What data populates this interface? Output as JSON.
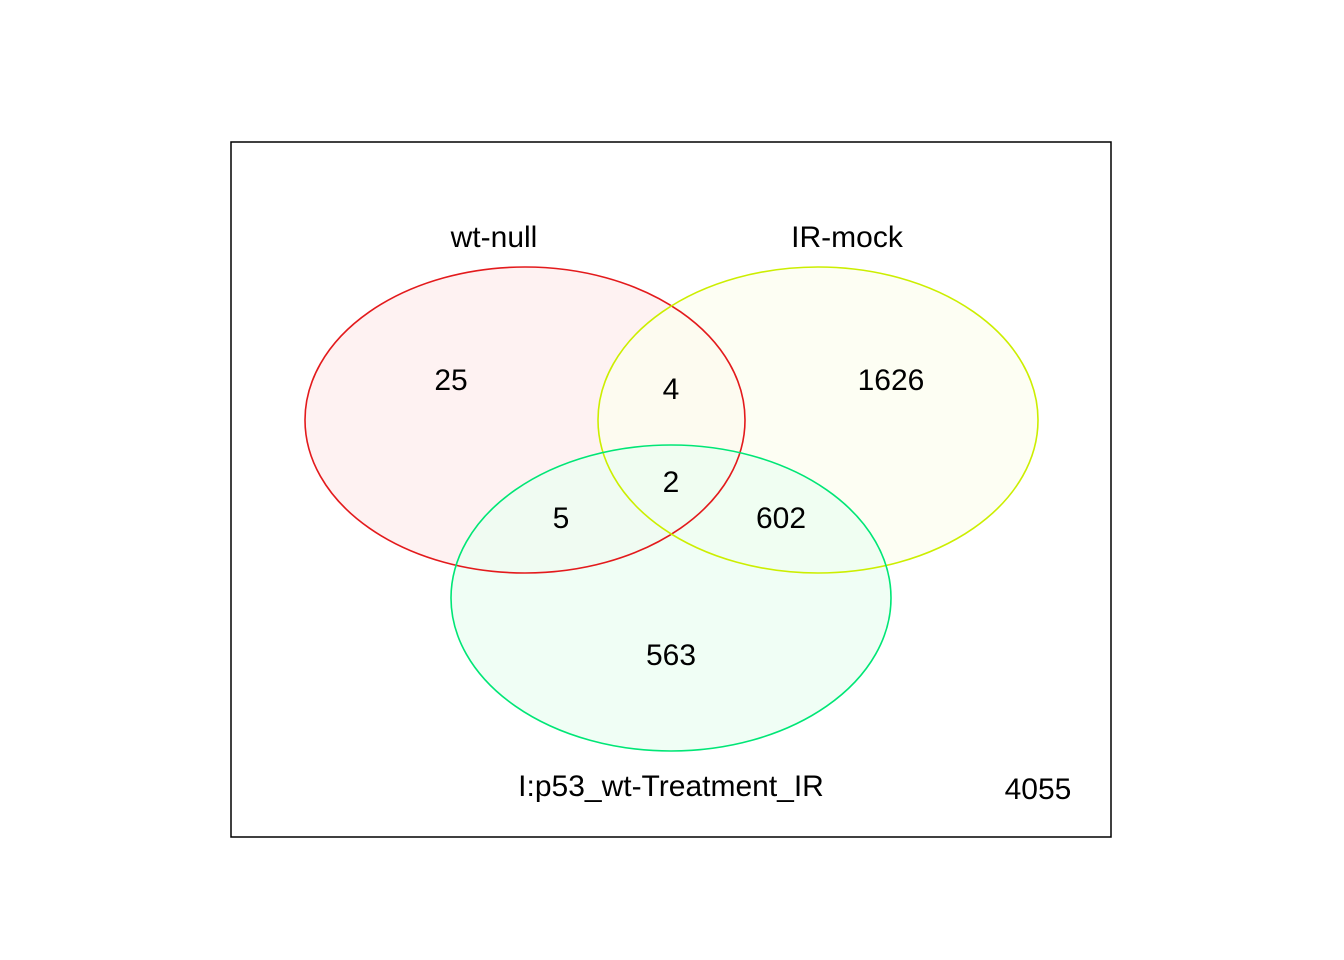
{
  "sets": [
    {
      "id": "A",
      "name": "wt-null",
      "stroke": "#e31a1c",
      "fill": "#fdeeee"
    },
    {
      "id": "B",
      "name": "IR-mock",
      "stroke": "#ccee00",
      "fill": "#fcfdef"
    },
    {
      "id": "C",
      "name": "I:p53_wt-Treatment_IR",
      "stroke": "#00e676",
      "fill": "#ebfdf2"
    }
  ],
  "regions": {
    "A_only": "25",
    "B_only": "1626",
    "C_only": "563",
    "AB_only": "4",
    "AC_only": "5",
    "BC_only": "602",
    "ABC": "2",
    "none": "4055"
  }
}
